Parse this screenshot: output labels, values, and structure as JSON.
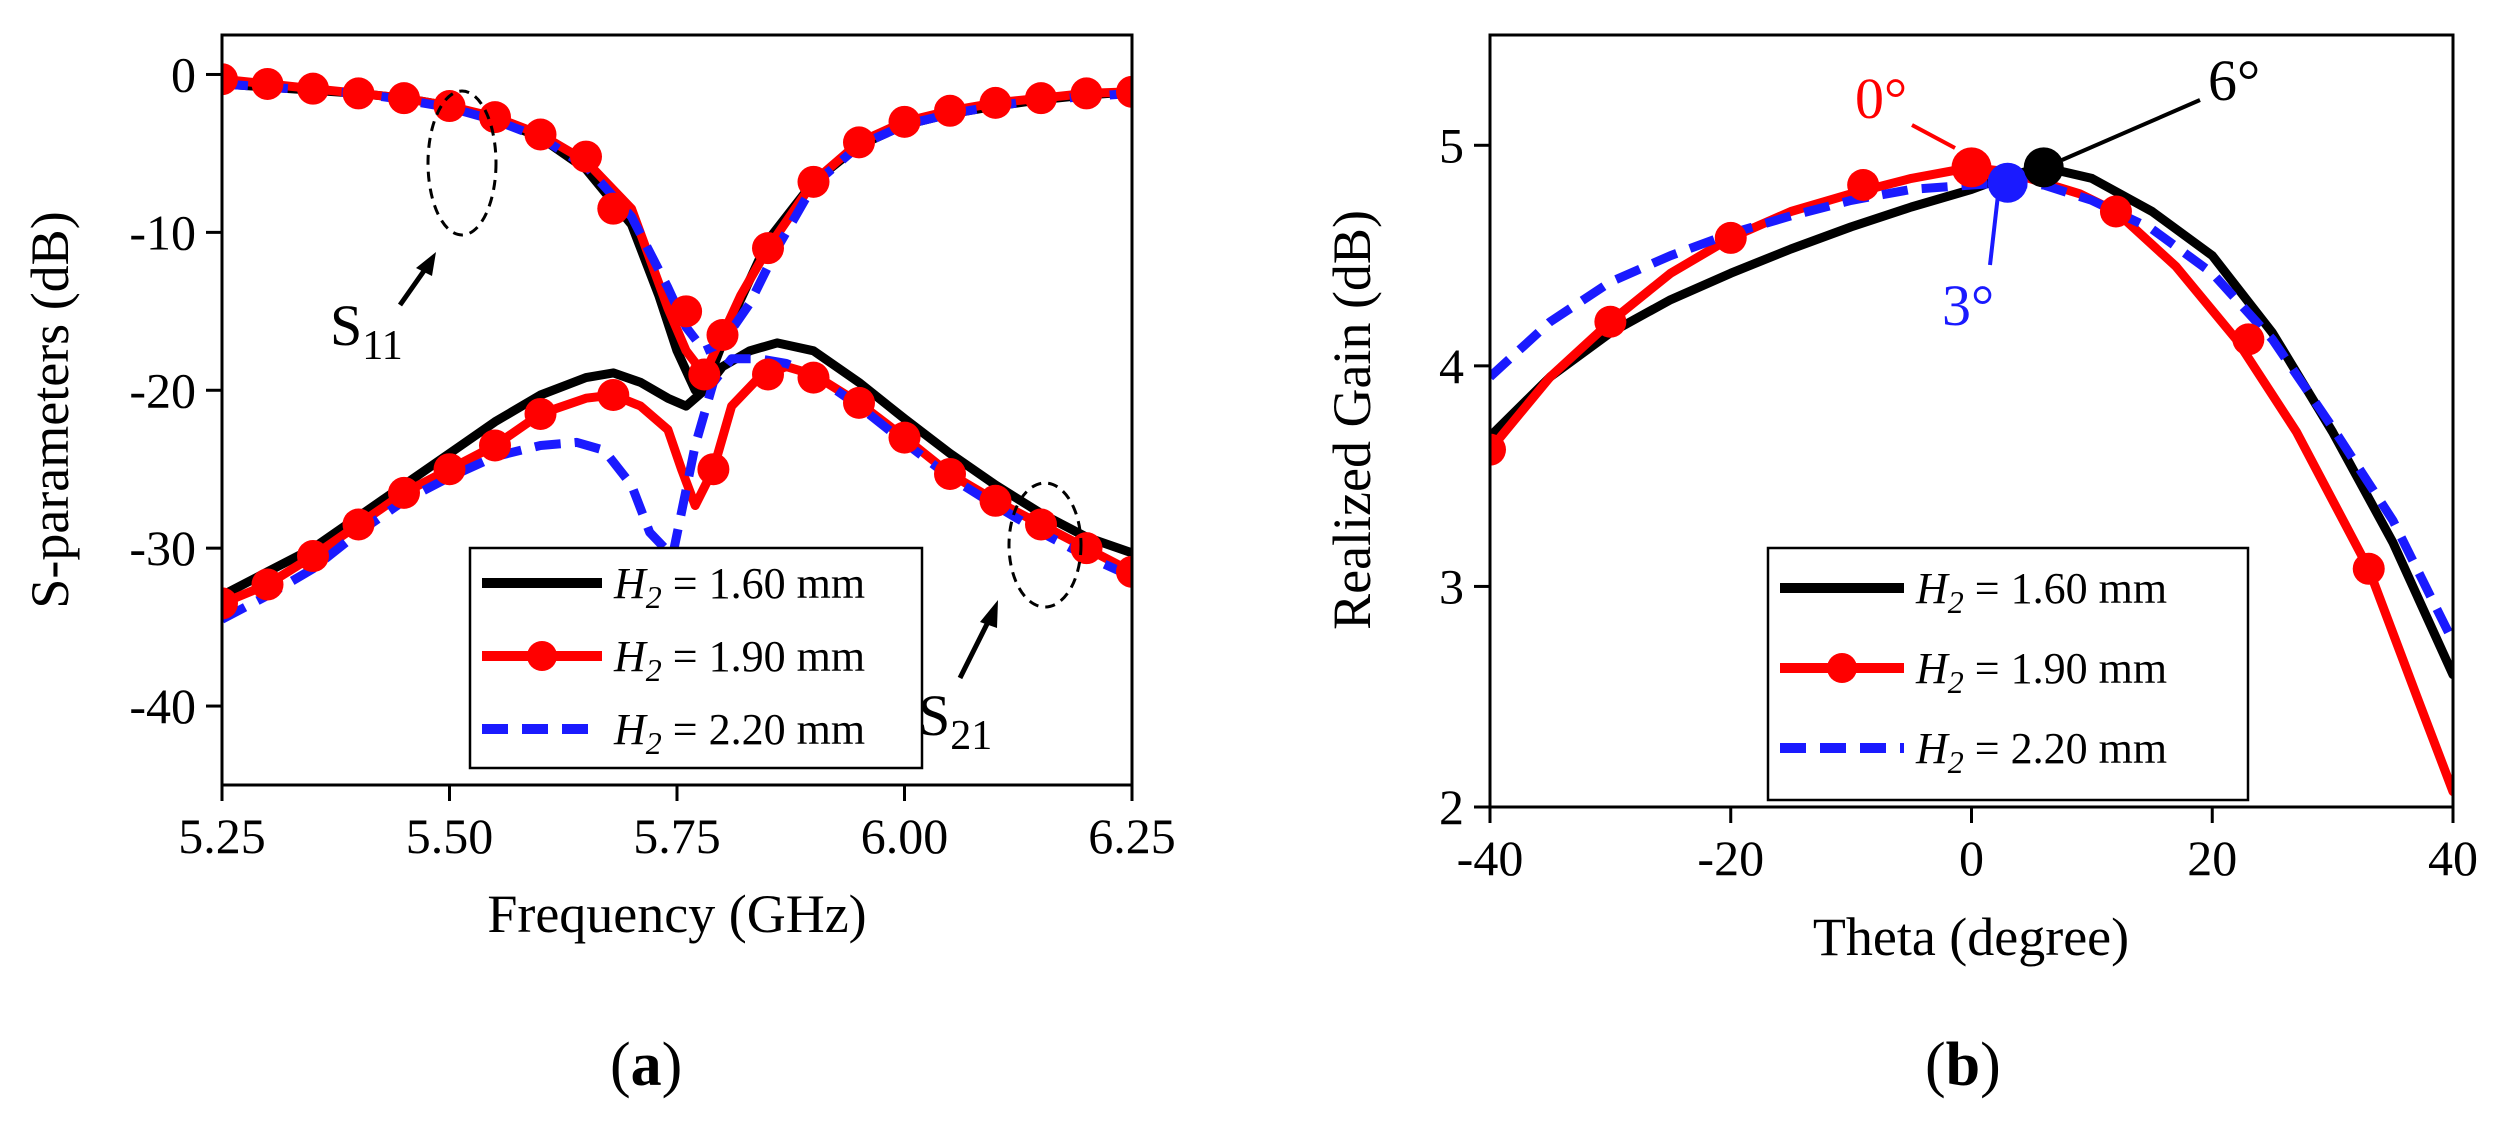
{
  "chart_data": [
    {
      "type": "line",
      "panel_label": "(a)",
      "panel_letter": "a",
      "xlabel": "Frequency (GHz)",
      "ylabel": "S-parameters (dB)",
      "xlim": [
        5.25,
        6.25
      ],
      "ylim": [
        -45,
        2.5
      ],
      "xticks": [
        5.25,
        5.5,
        5.75,
        6.0,
        6.25
      ],
      "xtick_labels": [
        "5.25",
        "5.50",
        "5.75",
        "6.00",
        "6.25"
      ],
      "yticks": [
        -40,
        -30,
        -20,
        -10,
        0
      ],
      "ytick_labels": [
        "-40",
        "-30",
        "-20",
        "-10",
        "0"
      ],
      "colors": {
        "H160": "#000000",
        "H190": "#ff0000",
        "H220": "#1a1aff"
      },
      "legend": {
        "placement": "bottom-right",
        "entries": [
          {
            "label_italic": "H",
            "label_sub": "2",
            "label_rest": " = 1.60 mm"
          },
          {
            "label_italic": "H",
            "label_sub": "2",
            "label_rest": " = 1.90 mm"
          },
          {
            "label_italic": "H",
            "label_sub": "2",
            "label_rest": " = 2.20 mm"
          }
        ]
      },
      "annotations": [
        {
          "text": "S",
          "sub": "11"
        },
        {
          "text": "S",
          "sub": "21"
        }
      ],
      "series": [
        {
          "name": "S11 H2 = 1.60 mm",
          "x": [
            5.25,
            5.3,
            5.35,
            5.4,
            5.45,
            5.5,
            5.55,
            5.6,
            5.65,
            5.7,
            5.73,
            5.75,
            5.77,
            5.79,
            5.81,
            5.85,
            5.9,
            5.95,
            6.0,
            6.05,
            6.1,
            6.15,
            6.2,
            6.25
          ],
          "y": [
            -0.6,
            -0.8,
            -1.0,
            -1.2,
            -1.5,
            -2.0,
            -2.8,
            -4.0,
            -6.0,
            -9.5,
            -14.0,
            -17.5,
            -20.0,
            -18.5,
            -15.5,
            -10.5,
            -6.8,
            -4.5,
            -3.2,
            -2.5,
            -2.0,
            -1.6,
            -1.3,
            -1.1
          ]
        },
        {
          "name": "S11 H2 = 1.90 mm",
          "x": [
            5.25,
            5.3,
            5.35,
            5.4,
            5.45,
            5.5,
            5.55,
            5.6,
            5.65,
            5.7,
            5.74,
            5.76,
            5.78,
            5.8,
            5.82,
            5.85,
            5.9,
            5.95,
            6.0,
            6.05,
            6.1,
            6.15,
            6.2,
            6.25
          ],
          "y": [
            -0.3,
            -0.6,
            -0.9,
            -1.2,
            -1.5,
            -2.0,
            -2.7,
            -3.8,
            -5.5,
            -8.5,
            -14.8,
            -17.5,
            -19.0,
            -16.5,
            -14.0,
            -11.0,
            -6.8,
            -4.3,
            -3.0,
            -2.3,
            -1.8,
            -1.5,
            -1.2,
            -1.1
          ]
        },
        {
          "name": "S11 H2 = 2.20 mm",
          "x": [
            5.25,
            5.3,
            5.35,
            5.4,
            5.45,
            5.5,
            5.55,
            5.6,
            5.65,
            5.7,
            5.74,
            5.76,
            5.78,
            5.8,
            5.83,
            5.86,
            5.9,
            5.95,
            6.0,
            6.05,
            6.1,
            6.15,
            6.2,
            6.25
          ],
          "y": [
            -0.6,
            -0.8,
            -1.0,
            -1.2,
            -1.6,
            -2.1,
            -2.9,
            -4.0,
            -5.8,
            -9.0,
            -13.5,
            -16.0,
            -17.5,
            -17.0,
            -14.5,
            -11.0,
            -7.0,
            -4.5,
            -3.2,
            -2.5,
            -2.0,
            -1.6,
            -1.4,
            -1.2
          ]
        },
        {
          "name": "S21 H2 = 1.60 mm",
          "x": [
            5.25,
            5.3,
            5.35,
            5.4,
            5.45,
            5.5,
            5.55,
            5.6,
            5.65,
            5.68,
            5.71,
            5.74,
            5.76,
            5.78,
            5.8,
            5.83,
            5.86,
            5.9,
            5.95,
            6.0,
            6.05,
            6.1,
            6.15,
            6.2,
            6.25
          ],
          "y": [
            -33.0,
            -31.5,
            -30.0,
            -28.0,
            -26.0,
            -24.0,
            -22.0,
            -20.3,
            -19.2,
            -18.9,
            -19.5,
            -20.5,
            -21.0,
            -20.0,
            -18.5,
            -17.5,
            -17.0,
            -17.5,
            -19.5,
            -21.8,
            -24.0,
            -26.0,
            -27.8,
            -29.3,
            -30.3
          ]
        },
        {
          "name": "S21 H2 = 1.90 mm",
          "x": [
            5.25,
            5.3,
            5.35,
            5.4,
            5.45,
            5.5,
            5.55,
            5.6,
            5.65,
            5.68,
            5.71,
            5.74,
            5.755,
            5.77,
            5.79,
            5.81,
            5.84,
            5.87,
            5.9,
            5.95,
            6.0,
            6.05,
            6.1,
            6.15,
            6.2,
            6.25
          ],
          "y": [
            -33.5,
            -32.3,
            -30.5,
            -28.5,
            -26.5,
            -25.0,
            -23.5,
            -21.5,
            -20.5,
            -20.3,
            -21.0,
            -22.5,
            -25.0,
            -27.3,
            -25.0,
            -21.0,
            -19.2,
            -18.5,
            -19.0,
            -20.8,
            -23.0,
            -25.3,
            -27.0,
            -28.5,
            -30.0,
            -31.5
          ]
        },
        {
          "name": "S21 H2 = 2.20 mm",
          "x": [
            5.25,
            5.3,
            5.35,
            5.4,
            5.45,
            5.5,
            5.55,
            5.6,
            5.64,
            5.67,
            5.7,
            5.72,
            5.745,
            5.77,
            5.79,
            5.81,
            5.84,
            5.87,
            5.9,
            5.95,
            6.0,
            6.05,
            6.1,
            6.15,
            6.2,
            6.25
          ],
          "y": [
            -34.5,
            -33.0,
            -31.3,
            -29.0,
            -27.0,
            -25.5,
            -24.2,
            -23.5,
            -23.3,
            -23.8,
            -26.0,
            -29.0,
            -30.5,
            -23.5,
            -19.5,
            -18.0,
            -18.0,
            -18.3,
            -19.0,
            -21.0,
            -23.3,
            -25.5,
            -27.3,
            -29.0,
            -30.5,
            -31.8
          ]
        }
      ],
      "markers": {
        "S11 H2 = 1.90 mm": {
          "x": [
            5.25,
            5.3,
            5.35,
            5.4,
            5.45,
            5.5,
            5.55,
            5.6,
            5.65,
            5.68,
            5.76,
            5.78,
            5.8,
            5.85,
            5.9,
            5.95,
            6.0,
            6.05,
            6.1,
            6.15,
            6.2,
            6.25
          ],
          "y": [
            -0.3,
            -0.6,
            -0.9,
            -1.2,
            -1.5,
            -2.0,
            -2.7,
            -3.8,
            -5.2,
            -8.5,
            -15.0,
            -19.0,
            -16.5,
            -11.0,
            -6.8,
            -4.3,
            -3.0,
            -2.3,
            -1.8,
            -1.5,
            -1.2,
            -1.1
          ]
        },
        "S21 H2 = 1.90 mm": {
          "x": [
            5.25,
            5.3,
            5.35,
            5.4,
            5.45,
            5.5,
            5.55,
            5.6,
            5.68,
            5.79,
            5.85,
            5.9,
            5.95,
            6.0,
            6.05,
            6.1,
            6.15,
            6.2,
            6.25
          ],
          "y": [
            -33.5,
            -32.3,
            -30.5,
            -28.5,
            -26.5,
            -25.0,
            -23.5,
            -21.5,
            -20.3,
            -25.0,
            -19.0,
            -19.2,
            -20.8,
            -23.0,
            -25.3,
            -27.0,
            -28.5,
            -30.0,
            -31.5
          ]
        }
      }
    },
    {
      "type": "line",
      "panel_label": "(b)",
      "panel_letter": "b",
      "xlabel": "Theta (degree)",
      "ylabel": "Realized Gain (dB)",
      "xlim": [
        -40,
        40
      ],
      "ylim": [
        2,
        5.5
      ],
      "xticks": [
        -40,
        -20,
        0,
        20,
        40
      ],
      "xtick_labels": [
        "-40",
        "-20",
        "0",
        "20",
        "40"
      ],
      "yticks": [
        2,
        3,
        4,
        5
      ],
      "ytick_labels": [
        "2",
        "3",
        "4",
        "5"
      ],
      "legend": {
        "placement": "bottom-left",
        "entries": [
          {
            "label_italic": "H",
            "label_sub": "2",
            "label_rest": " = 1.60 mm"
          },
          {
            "label_italic": "H",
            "label_sub": "2",
            "label_rest": " = 1.90 mm"
          },
          {
            "label_italic": "H",
            "label_sub": "2",
            "label_rest": " = 2.20 mm"
          }
        ]
      },
      "annotations": [
        {
          "text": "0°",
          "color": "#ff0000"
        },
        {
          "text": "3°",
          "color": "#1a1aff"
        },
        {
          "text": "6°",
          "color": "#000000"
        }
      ],
      "peaks": [
        {
          "series": "H2 = 1.90 mm",
          "x": 0,
          "y": 4.9
        },
        {
          "series": "H2 = 2.20 mm",
          "x": 3,
          "y": 4.83
        },
        {
          "series": "H2 = 1.60 mm",
          "x": 6,
          "y": 4.9
        }
      ],
      "series": [
        {
          "name": "H2 = 1.60 mm",
          "x": [
            -40,
            -35,
            -30,
            -25,
            -20,
            -15,
            -10,
            -5,
            0,
            3,
            6,
            10,
            15,
            20,
            25,
            30,
            35,
            40
          ],
          "y": [
            3.68,
            3.95,
            4.15,
            4.3,
            4.42,
            4.53,
            4.63,
            4.72,
            4.8,
            4.86,
            4.9,
            4.85,
            4.7,
            4.5,
            4.15,
            3.7,
            3.2,
            2.6
          ]
        },
        {
          "name": "H2 = 1.90 mm",
          "x": [
            -40,
            -35,
            -30,
            -25,
            -20,
            -15,
            -10,
            -5,
            0,
            3,
            6,
            9,
            12,
            17,
            22,
            27,
            33,
            37,
            40
          ],
          "y": [
            3.62,
            3.95,
            4.2,
            4.42,
            4.58,
            4.7,
            4.78,
            4.85,
            4.9,
            4.88,
            4.83,
            4.78,
            4.7,
            4.45,
            4.12,
            3.7,
            3.08,
            2.5,
            2.07
          ]
        },
        {
          "name": "H2 = 2.20 mm",
          "x": [
            -40,
            -35,
            -30,
            -25,
            -20,
            -15,
            -10,
            -5,
            0,
            3,
            6,
            10,
            15,
            20,
            25,
            30,
            35,
            40
          ],
          "y": [
            3.95,
            4.2,
            4.38,
            4.5,
            4.6,
            4.68,
            4.75,
            4.8,
            4.82,
            4.83,
            4.82,
            4.75,
            4.62,
            4.42,
            4.12,
            3.72,
            3.3,
            2.75
          ]
        }
      ],
      "markers": {
        "H2 = 1.90 mm": {
          "x": [
            -40,
            -30,
            -20,
            -9,
            0,
            12,
            23,
            33
          ],
          "y": [
            3.62,
            4.2,
            4.58,
            4.82,
            4.9,
            4.7,
            4.12,
            3.08
          ]
        }
      }
    }
  ]
}
